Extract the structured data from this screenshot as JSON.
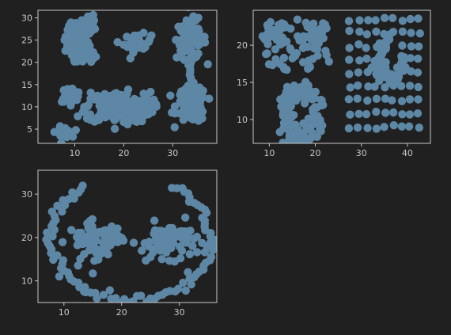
{
  "theme": {
    "background": "#202020",
    "axes_color": "#c8c8c8",
    "point_color": "#5d87a5"
  },
  "chart_data": [
    {
      "type": "scatter",
      "title": "",
      "xlabel": "",
      "ylabel": "",
      "xlim": [
        2.5,
        39
      ],
      "ylim": [
        1.8,
        31.7
      ],
      "xticks": [
        10,
        20,
        30
      ],
      "yticks": [
        5,
        10,
        15,
        20,
        25,
        30
      ],
      "clusters": [
        {
          "shape": "crescent",
          "center": [
            12.5,
            25
          ],
          "radius": 4.5,
          "count": 150,
          "spread": 1.3
        },
        {
          "shape": "blob",
          "center": [
            22.8,
            24.3
          ],
          "spread": [
            1.4,
            1.0
          ],
          "count": 40
        },
        {
          "shape": "blob",
          "center": [
            33.8,
            25.2
          ],
          "spread": [
            1.5,
            2.2
          ],
          "count": 110
        },
        {
          "shape": "blob",
          "center": [
            33.8,
            10.5
          ],
          "spread": [
            1.5,
            2.0
          ],
          "count": 110
        },
        {
          "shape": "line",
          "from": [
            33.6,
            21
          ],
          "to": [
            33.9,
            14
          ],
          "count": 12
        },
        {
          "shape": "blob",
          "center": [
            9.2,
            12.8
          ],
          "spread": [
            1.1,
            0.8
          ],
          "count": 30
        },
        {
          "shape": "blob",
          "center": [
            7.7,
            4.3
          ],
          "spread": [
            0.8,
            0.6
          ],
          "count": 25
        },
        {
          "shape": "blob",
          "center": [
            18.8,
            9.9
          ],
          "spread": [
            3.3,
            1.7
          ],
          "count": 260
        }
      ]
    },
    {
      "type": "scatter",
      "title": "",
      "xlabel": "",
      "ylabel": "",
      "xlim": [
        6.5,
        45
      ],
      "ylim": [
        6.8,
        24.7
      ],
      "xticks": [
        10,
        20,
        30,
        40
      ],
      "yticks": [
        10,
        15,
        20
      ],
      "clusters": [
        {
          "shape": "uniform",
          "xrange": [
            8.5,
            23
          ],
          "yrange": [
            16.5,
            23.5
          ],
          "count": 60
        },
        {
          "shape": "blob",
          "center": [
            11.8,
            21.2
          ],
          "spread": [
            1.0,
            0.8
          ],
          "count": 20
        },
        {
          "shape": "blob",
          "center": [
            20.2,
            21.0
          ],
          "spread": [
            0.9,
            1.0
          ],
          "count": 20
        },
        {
          "shape": "ring",
          "center": [
            17.0,
            10.6
          ],
          "radius": 3.6,
          "count": 120,
          "spread": 0.9
        },
        {
          "shape": "grid",
          "xrange": [
            27.5,
            42.5
          ],
          "yrange": [
            9,
            23.5
          ],
          "nx": 9,
          "ny": 9,
          "jitter": 0.5
        },
        {
          "shape": "arc",
          "center": [
            36.8,
            18.2
          ],
          "radius": 2.6,
          "start_deg": 100,
          "end_deg": 370,
          "count": 50,
          "spread": 0.4
        },
        {
          "shape": "blob",
          "center": [
            34.2,
            17.2
          ],
          "spread": [
            0.7,
            0.9
          ],
          "count": 25
        }
      ]
    },
    {
      "type": "scatter",
      "title": "",
      "xlabel": "",
      "ylabel": "",
      "xlim": [
        5.5,
        36.5
      ],
      "ylim": [
        5,
        35.5
      ],
      "xticks": [
        10,
        20,
        30
      ],
      "yticks": [
        10,
        20,
        30
      ],
      "clusters": [
        {
          "shape": "arc",
          "center": [
            21.6,
            19.8
          ],
          "radius": 14,
          "yscale": 1.02,
          "start_deg": -235,
          "end_deg": 58,
          "count": 95,
          "spread": 0.45
        },
        {
          "shape": "blob",
          "center": [
            15.5,
            19.4
          ],
          "spread": [
            2.4,
            2.0
          ],
          "count": 75
        },
        {
          "shape": "blob",
          "center": [
            28.3,
            19.4
          ],
          "spread": [
            2.4,
            2.0
          ],
          "count": 75
        },
        {
          "shape": "scatter_points",
          "points": [
            [
              13.5,
              7.5
            ],
            [
              15,
              11.7
            ],
            [
              25,
              15.5
            ],
            [
              27,
              15
            ],
            [
              30.2,
              15.2
            ],
            [
              9.2,
              11
            ],
            [
              24.2,
              14.7
            ],
            [
              31.5,
              12
            ]
          ]
        }
      ]
    }
  ]
}
